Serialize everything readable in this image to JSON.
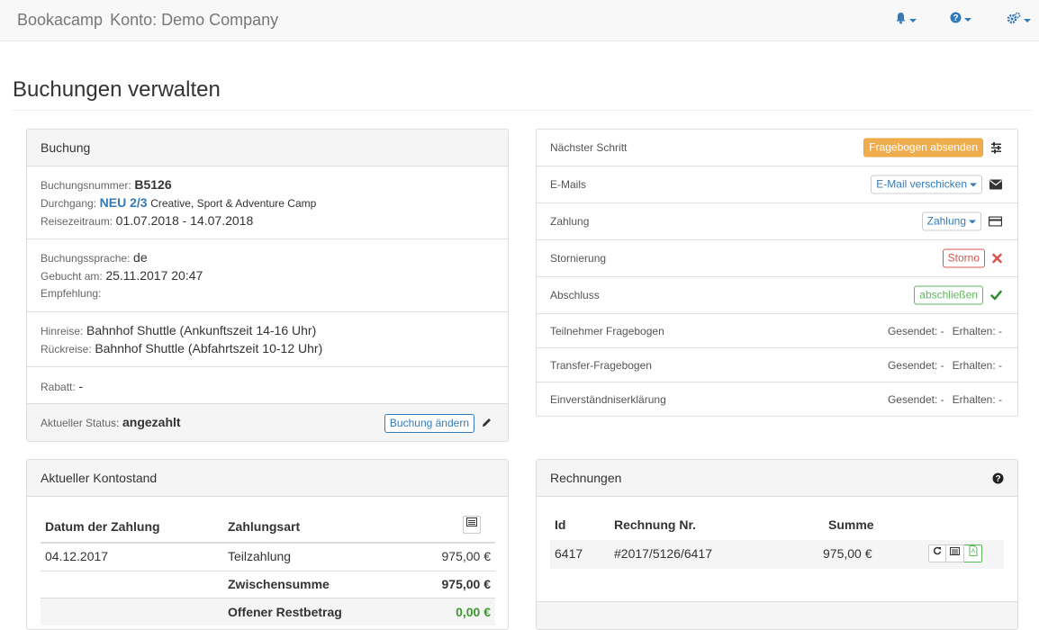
{
  "navbar": {
    "brand": "Bookacamp",
    "account": "Konto: Demo Company",
    "icons": [
      "bell-icon",
      "question-circle-icon",
      "cogs-icon"
    ]
  },
  "page_title": "Buchungen verwalten",
  "booking_panel": {
    "title": "Buchung",
    "number_label": "Buchungsnummer:",
    "number_value": "B5126",
    "run_label": "Durchgang:",
    "run_badge": "NEU 2/3",
    "run_name": "Creative, Sport & Adventure Camp",
    "period_label": "Reisezeitraum:",
    "period_value": "01.07.2018 - 14.07.2018",
    "language_label": "Buchungssprache:",
    "language_value": "de",
    "booked_label": "Gebucht am:",
    "booked_value": "25.11.2017 20:47",
    "referral_label": "Empfehlung:",
    "outbound_label": "Hinreise:",
    "outbound_value": "Bahnhof Shuttle (Ankunftszeit 14-16 Uhr)",
    "return_label": "Rückreise:",
    "return_value": "Bahnhof Shuttle (Abfahrtszeit 10-12 Uhr)",
    "discount_label": "Rabatt:",
    "discount_value": "-",
    "status_label": "Aktueller Status:",
    "status_value": "angezahlt",
    "change_button": "Buchung ändern"
  },
  "actions_panel": {
    "next_step_label": "Nächster Schritt",
    "next_step_button": "Fragebogen absenden",
    "emails_label": "E-Mails",
    "emails_button": "E-Mail verschicken",
    "payment_label": "Zahlung",
    "payment_button": "Zahlung",
    "cancel_label": "Stornierung",
    "cancel_button": "Storno",
    "complete_label": "Abschluss",
    "complete_button": "abschließen",
    "forms": [
      {
        "label": "Teilnehmer Fragebogen",
        "sent": "Gesendet: -",
        "received": "Erhalten: -"
      },
      {
        "label": "Transfer-Fragebogen",
        "sent": "Gesendet: -",
        "received": "Erhalten: -"
      },
      {
        "label": "Einverständniserklärung",
        "sent": "Gesendet: -",
        "received": "Erhalten: -"
      }
    ]
  },
  "balance_panel": {
    "title": "Aktueller Kontostand",
    "col_date": "Datum der Zahlung",
    "col_type": "Zahlungsart",
    "rows": [
      {
        "date": "04.12.2017",
        "type": "Teilzahlung",
        "amount": "975,00 €"
      }
    ],
    "subtotal_label": "Zwischensumme",
    "subtotal_value": "975,00 €",
    "open_label": "Offener Restbetrag",
    "open_value": "0,00 €"
  },
  "invoices_panel": {
    "title": "Rechnungen",
    "col_id": "Id",
    "col_number": "Rechnung Nr.",
    "col_sum": "Summe",
    "rows": [
      {
        "id": "6417",
        "number": "#2017/5126/6417",
        "sum": "975,00 €"
      }
    ]
  },
  "colors": {
    "primary": "#337ab7",
    "warning": "#f0ad4e",
    "danger": "#d9534f",
    "success": "#5cb85c",
    "open_amount": "#3c9a2b"
  }
}
